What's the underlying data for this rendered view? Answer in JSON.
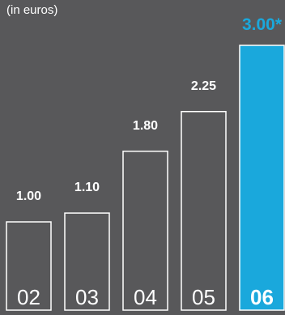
{
  "chart_data": {
    "type": "bar",
    "subtitle": "(in euros)",
    "categories": [
      "02",
      "03",
      "04",
      "05",
      "06"
    ],
    "values": [
      1.0,
      1.1,
      1.8,
      2.25,
      3.0
    ],
    "value_labels": [
      "1.00",
      "1.10",
      "1.80",
      "2.25",
      "3.00*"
    ],
    "highlight_index": 4,
    "ylim": [
      0,
      3.2
    ],
    "grid": false,
    "colors": {
      "background": "#58585a",
      "bar_outline": "#ffffff",
      "highlight_fill": "#1aa8dc",
      "highlight_text": "#1aa8dc"
    }
  }
}
